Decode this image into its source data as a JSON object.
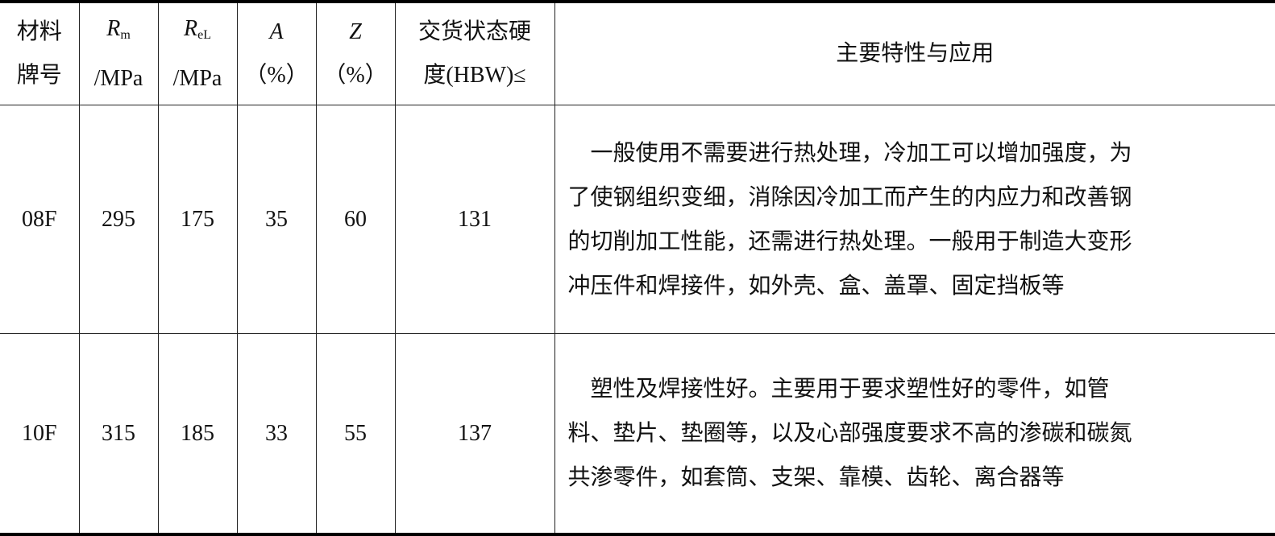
{
  "table": {
    "headers": [
      {
        "line1": "材料",
        "line2": "牌号"
      },
      {
        "symbol": "R",
        "sub": "m",
        "line2": "/MPa"
      },
      {
        "symbol": "R",
        "sub": "eL",
        "line2": "/MPa"
      },
      {
        "symbol": "A",
        "line2": "（%）"
      },
      {
        "symbol": "Z",
        "line2": "（%）"
      },
      {
        "line1": "交货状态硬",
        "line2": "度(HBW)≤"
      },
      {
        "line1": "主要特性与应用"
      }
    ],
    "rows": [
      {
        "grade": "08F",
        "rm": "295",
        "rel": "175",
        "a": "35",
        "z": "60",
        "hbw": "131",
        "description": [
          "一般使用不需要进行热处理，冷加工可以增加强度，为",
          "了使钢组织变细，消除因冷加工而产生的内应力和改善钢",
          "的切削加工性能，还需进行热处理。一般用于制造大变形",
          "冲压件和焊接件，如外壳、盒、盖罩、固定挡板等"
        ]
      },
      {
        "grade": "10F",
        "rm": "315",
        "rel": "185",
        "a": "33",
        "z": "55",
        "hbw": "137",
        "description": [
          "塑性及焊接性好。主要用于要求塑性好的零件，如管",
          "料、垫片、垫圈等，以及心部强度要求不高的渗碳和碳氮",
          "共渗零件，如套筒、支架、靠模、齿轮、离合器等"
        ]
      }
    ]
  }
}
